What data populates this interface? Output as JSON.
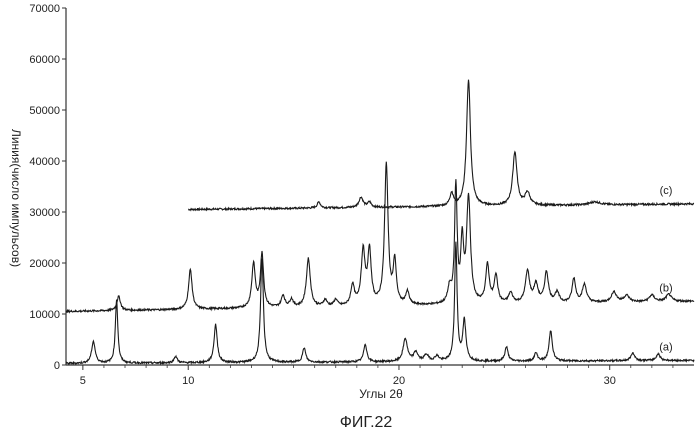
{
  "chart_data": {
    "type": "line",
    "title": "",
    "xlabel": "Углы 2θ",
    "ylabel": "Линия(число импульсов)",
    "caption": "ФИГ.22",
    "xlim": [
      4.2,
      34
    ],
    "ylim": [
      0,
      70000
    ],
    "x_ticks": [
      5,
      10,
      20,
      30
    ],
    "x_minor_ticks": [
      6,
      7,
      8,
      9,
      11,
      12,
      13,
      14,
      15,
      16,
      17,
      18,
      19,
      21,
      22,
      23,
      24,
      25,
      26,
      27,
      28,
      29,
      31,
      32,
      33
    ],
    "y_ticks": [
      0,
      10000,
      20000,
      30000,
      40000,
      50000,
      60000,
      70000
    ],
    "grid": false,
    "series": [
      {
        "name": "(c)",
        "x_start": 10,
        "x_end": 34,
        "baseline": 30500,
        "baseline_end": 31600,
        "peaks": [
          [
            16.2,
            1200,
            0.09
          ],
          [
            18.2,
            2000,
            0.12
          ],
          [
            18.6,
            1000,
            0.1
          ],
          [
            22.5,
            2500,
            0.1
          ],
          [
            23.3,
            24800,
            0.11
          ],
          [
            25.5,
            10500,
            0.12
          ],
          [
            26.1,
            2500,
            0.14
          ],
          [
            29.3,
            600,
            0.3
          ]
        ]
      },
      {
        "name": "(b)",
        "x_start": 4.2,
        "x_end": 34,
        "baseline": 10500,
        "baseline_end": 12500,
        "peaks": [
          [
            6.7,
            2800,
            0.1
          ],
          [
            10.1,
            7800,
            0.1
          ],
          [
            13.1,
            8600,
            0.1
          ],
          [
            13.5,
            10500,
            0.09
          ],
          [
            14.5,
            2300,
            0.1
          ],
          [
            14.9,
            1500,
            0.1
          ],
          [
            15.7,
            9500,
            0.11
          ],
          [
            16.5,
            1300,
            0.1
          ],
          [
            17.0,
            1300,
            0.1
          ],
          [
            17.8,
            4000,
            0.1
          ],
          [
            18.3,
            10500,
            0.11
          ],
          [
            18.6,
            10300,
            0.1
          ],
          [
            19.4,
            27500,
            0.1
          ],
          [
            19.8,
            8200,
            0.09
          ],
          [
            20.4,
            2500,
            0.1
          ],
          [
            22.4,
            3000,
            0.1
          ],
          [
            22.7,
            23000,
            0.07
          ],
          [
            23.0,
            11500,
            0.08
          ],
          [
            23.3,
            20700,
            0.11
          ],
          [
            24.2,
            7500,
            0.1
          ],
          [
            24.6,
            5500,
            0.1
          ],
          [
            25.3,
            2000,
            0.12
          ],
          [
            26.1,
            6200,
            0.12
          ],
          [
            26.5,
            3500,
            0.12
          ],
          [
            27.0,
            6000,
            0.11
          ],
          [
            27.5,
            2000,
            0.12
          ],
          [
            28.3,
            4700,
            0.1
          ],
          [
            28.8,
            3500,
            0.12
          ],
          [
            30.2,
            2000,
            0.15
          ],
          [
            30.8,
            1300,
            0.15
          ],
          [
            32.0,
            1300,
            0.15
          ],
          [
            32.8,
            1400,
            0.15
          ]
        ]
      },
      {
        "name": "(a)",
        "x_start": 4.2,
        "x_end": 34,
        "baseline": 300,
        "baseline_end": 900,
        "peaks": [
          [
            5.5,
            4300,
            0.1
          ],
          [
            6.6,
            12500,
            0.07
          ],
          [
            9.4,
            1300,
            0.09
          ],
          [
            11.3,
            7500,
            0.09
          ],
          [
            13.5,
            20500,
            0.08
          ],
          [
            15.5,
            2800,
            0.09
          ],
          [
            18.4,
            3500,
            0.09
          ],
          [
            20.3,
            4500,
            0.12
          ],
          [
            20.8,
            1800,
            0.12
          ],
          [
            21.3,
            1300,
            0.12
          ],
          [
            21.8,
            1000,
            0.12
          ],
          [
            22.7,
            23000,
            0.07
          ],
          [
            23.1,
            7900,
            0.09
          ],
          [
            25.1,
            2800,
            0.09
          ],
          [
            26.5,
            1600,
            0.09
          ],
          [
            27.2,
            6000,
            0.09
          ],
          [
            31.1,
            1500,
            0.11
          ],
          [
            32.3,
            1300,
            0.11
          ]
        ]
      }
    ]
  }
}
